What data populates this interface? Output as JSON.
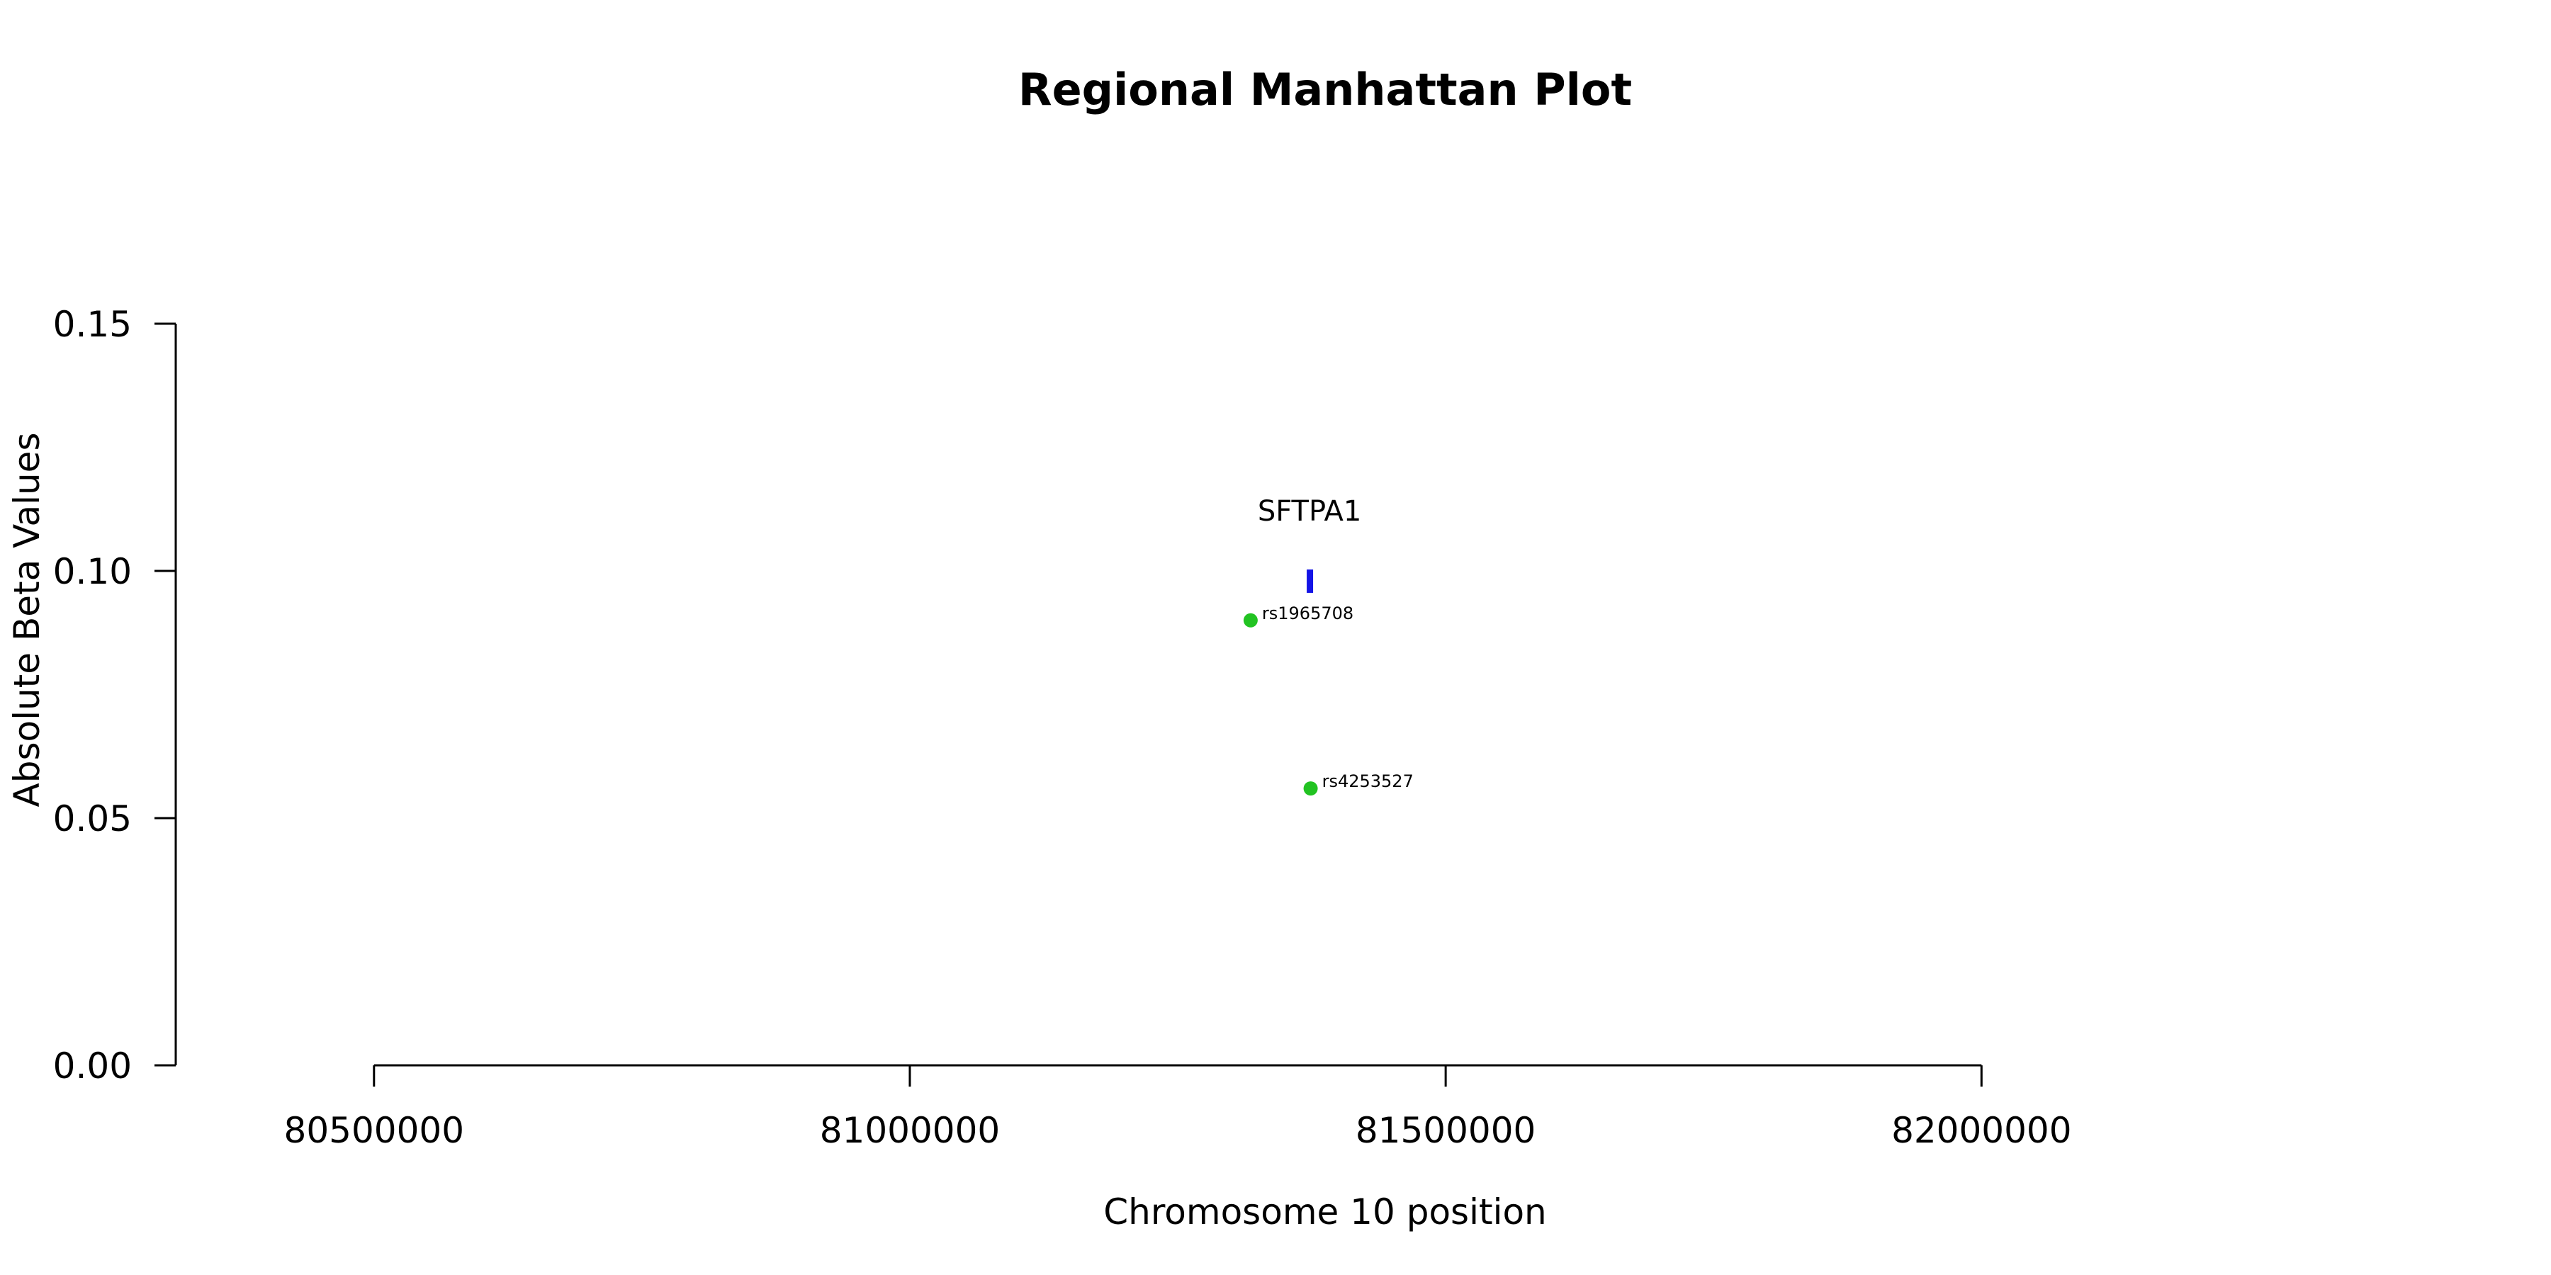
{
  "chart_data": {
    "type": "scatter",
    "title": "Regional Manhattan Plot",
    "xlabel": "Chromosome 10 position",
    "ylabel": "Absolute Beta Values",
    "xlim": [
      80315000,
      82460000
    ],
    "ylim": [
      0,
      0.15
    ],
    "x_ticks": [
      80500000,
      81000000,
      81500000,
      82000000
    ],
    "x_tick_labels": [
      "80500000",
      "81000000",
      "81500000",
      "82000000"
    ],
    "y_ticks": [
      0,
      0.05,
      0.1,
      0.15
    ],
    "y_tick_labels": [
      "0.00",
      "0.05",
      "0.10",
      "0.15"
    ],
    "grid": false,
    "points": [
      {
        "label": "rs1965708",
        "x": 81318000,
        "y": 0.09
      },
      {
        "label": "rs4253527",
        "x": 81374000,
        "y": 0.056
      }
    ],
    "genes": [
      {
        "name": "SFTPA1",
        "x": 81373000,
        "y": 0.098
      }
    ],
    "colors": {
      "snp_point": "#22c322",
      "gene_marker": "#1414e6"
    }
  }
}
